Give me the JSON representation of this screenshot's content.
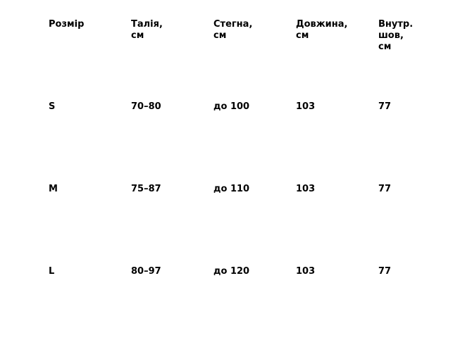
{
  "table": {
    "headers": [
      "Розмір",
      "Талія,\nсм",
      "Стегна,\nсм",
      "Довжина,\nсм",
      "Внутр.\nшов,\nсм"
    ],
    "rows": [
      [
        "S",
        "70–80",
        "до 100",
        "103",
        "77"
      ],
      [
        "M",
        "75–87",
        "до 110",
        "103",
        "77"
      ],
      [
        "L",
        "80–97",
        "до 120",
        "103",
        "77"
      ]
    ]
  }
}
